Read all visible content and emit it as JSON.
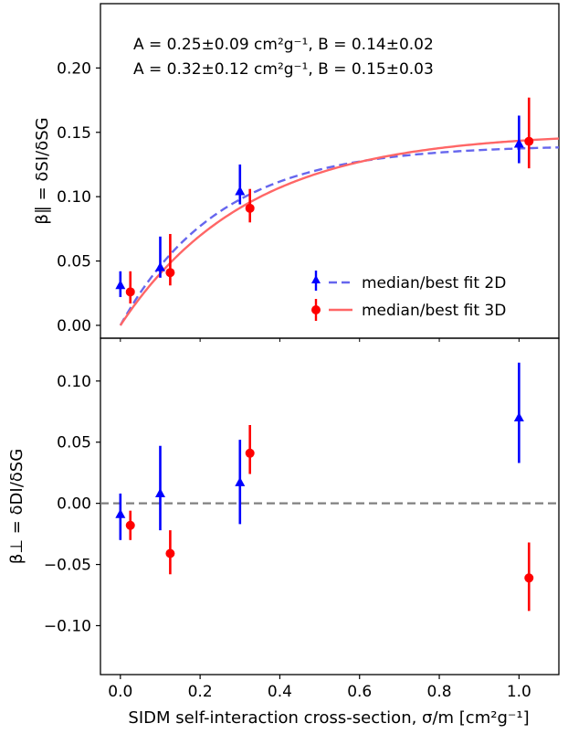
{
  "chart_data": [
    {
      "type": "scatter",
      "panel": "top",
      "ylabel": "β∥ = δSI/δSG",
      "xlim": [
        -0.05,
        1.1
      ],
      "ylim": [
        -0.01,
        0.25
      ],
      "yticks": [
        "0.00",
        "0.05",
        "0.10",
        "0.15",
        "0.20"
      ],
      "annotations": [
        {
          "text": "A = 0.25±0.09 cm²g⁻¹, B = 0.14±0.02",
          "color": "#0000ff"
        },
        {
          "text": "A = 0.32±0.12 cm²g⁻¹, B = 0.15±0.03",
          "color": "#ff0000"
        }
      ],
      "legend": {
        "placement": "lower-right",
        "entries": [
          {
            "label": "median/best fit 2D",
            "color": "#0000ff",
            "marker": "triangle",
            "line": "dashed"
          },
          {
            "label": "median/best fit 3D",
            "color": "#ff0000",
            "marker": "circle",
            "line": "solid"
          }
        ]
      },
      "series": [
        {
          "name": "2D",
          "color": "#0000ff",
          "marker": "triangle",
          "x": [
            0.0,
            0.1,
            0.3,
            1.0
          ],
          "y": [
            0.031,
            0.045,
            0.104,
            0.141
          ],
          "err_low": [
            0.022,
            0.037,
            0.094,
            0.126
          ],
          "err_high": [
            0.042,
            0.069,
            0.125,
            0.163
          ]
        },
        {
          "name": "3D",
          "color": "#ff0000",
          "marker": "circle",
          "x": [
            0.025,
            0.125,
            0.325,
            1.025
          ],
          "y": [
            0.026,
            0.041,
            0.091,
            0.143
          ],
          "err_low": [
            0.017,
            0.031,
            0.08,
            0.122
          ],
          "err_high": [
            0.042,
            0.071,
            0.106,
            0.177
          ]
        }
      ],
      "fits": [
        {
          "name": "best fit 2D",
          "color": "#6666ee",
          "style": "dashed",
          "A": 0.25,
          "B": 0.14
        },
        {
          "name": "best fit 3D",
          "color": "#ff6666",
          "style": "solid",
          "A": 0.32,
          "B": 0.15
        }
      ]
    },
    {
      "type": "scatter",
      "panel": "bottom",
      "ylabel": "β⊥ = δDI/δSG",
      "xlabel": "SIDM self-interaction cross-section, σ/m [cm²g⁻¹]",
      "xlim": [
        -0.05,
        1.1
      ],
      "ylim": [
        -0.14,
        0.135
      ],
      "xticks": [
        "0.0",
        "0.2",
        "0.4",
        "0.6",
        "0.8",
        "1.0"
      ],
      "yticks": [
        "−0.10",
        "−0.05",
        "0.00",
        "0.05",
        "0.10"
      ],
      "reference_line": {
        "y": 0.0,
        "color": "#808080",
        "style": "dashed"
      },
      "series": [
        {
          "name": "2D",
          "color": "#0000ff",
          "marker": "triangle",
          "x": [
            0.0,
            0.1,
            0.3,
            1.0
          ],
          "y": [
            -0.009,
            0.008,
            0.017,
            0.07
          ],
          "err_low": [
            -0.03,
            -0.022,
            -0.017,
            0.033
          ],
          "err_high": [
            0.008,
            0.047,
            0.052,
            0.115
          ]
        },
        {
          "name": "3D",
          "color": "#ff0000",
          "marker": "circle",
          "x": [
            0.025,
            0.125,
            0.325,
            1.025
          ],
          "y": [
            -0.018,
            -0.041,
            0.041,
            -0.061
          ],
          "err_low": [
            -0.03,
            -0.058,
            0.024,
            -0.088
          ],
          "err_high": [
            -0.006,
            -0.022,
            0.064,
            -0.032
          ]
        }
      ]
    }
  ]
}
